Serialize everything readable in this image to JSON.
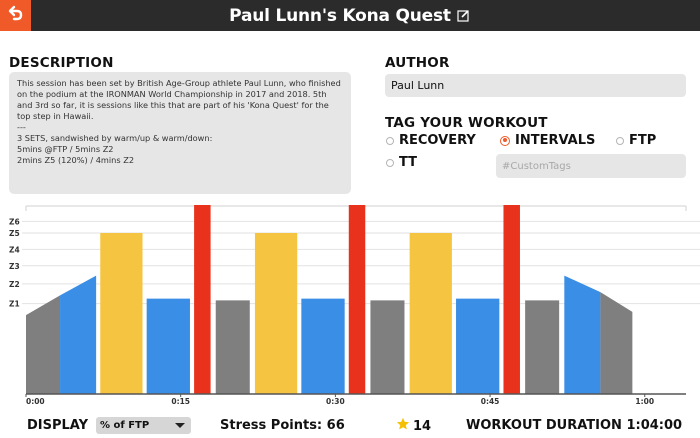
{
  "header": {
    "title": "Paul Lunn's Kona Quest",
    "icons": {
      "back": "back-arrow-icon",
      "edit": "edit-icon"
    },
    "colors": {
      "bar": "#2b2b2b",
      "back": "#f05a28"
    }
  },
  "description": {
    "label": "DESCRIPTION",
    "text": "This session has been set by British Age-Group athlete Paul Lunn, who finished on the podium at the IRONMAN World Championship in 2017 and 2018. 5th and 3rd so far, it is sessions like this that are part of his 'Kona Quest' for the top step in Hawaii.\n---\n3 SETS, sandwished by warm/up & warm/down:\n5mins @FTP / 5mins Z2\n2mins Z5 (120%) / 4mins Z2"
  },
  "author": {
    "label": "AUTHOR",
    "value": "Paul Lunn"
  },
  "tags": {
    "label": "TAG YOUR WORKOUT",
    "options": [
      {
        "label": "RECOVERY",
        "selected": false
      },
      {
        "label": "INTERVALS",
        "selected": true
      },
      {
        "label": "FTP",
        "selected": false
      },
      {
        "label": "TT",
        "selected": false
      }
    ],
    "custom_placeholder": "#CustomTags"
  },
  "chart_data": {
    "type": "bar",
    "title": "",
    "xlabel": "",
    "ylabel": "",
    "x_tick_labels": [
      "0:00",
      "0:15",
      "0:30",
      "0:45",
      "1:00"
    ],
    "x_tick_minutes": [
      0,
      15,
      30,
      45,
      60
    ],
    "zone_labels": [
      "Z1",
      "Z2",
      "Z3",
      "Z4",
      "Z5",
      "Z6"
    ],
    "zone_levels": [
      0.55,
      0.67,
      0.78,
      0.88,
      0.98,
      1.05
    ],
    "ylim": [
      0,
      1.15
    ],
    "total_minutes": 64,
    "segments": [
      {
        "start": 0,
        "end": 3.3,
        "from": 0.48,
        "to": 0.6,
        "zone": 1
      },
      {
        "start": 3.3,
        "end": 6.8,
        "from": 0.6,
        "to": 0.72,
        "zone": 2
      },
      {
        "start": 7.2,
        "end": 11.3,
        "from": 0.98,
        "to": 0.98,
        "zone": 4
      },
      {
        "start": 11.7,
        "end": 15.9,
        "from": 0.58,
        "to": 0.58,
        "zone": 2
      },
      {
        "start": 16.3,
        "end": 17.9,
        "from": 1.2,
        "to": 1.2,
        "zone": 5
      },
      {
        "start": 18.4,
        "end": 21.7,
        "from": 0.57,
        "to": 0.57,
        "zone": 1
      },
      {
        "start": 22.2,
        "end": 26.3,
        "from": 0.98,
        "to": 0.98,
        "zone": 4
      },
      {
        "start": 26.7,
        "end": 30.9,
        "from": 0.58,
        "to": 0.58,
        "zone": 2
      },
      {
        "start": 31.3,
        "end": 32.9,
        "from": 1.2,
        "to": 1.2,
        "zone": 5
      },
      {
        "start": 33.4,
        "end": 36.7,
        "from": 0.57,
        "to": 0.57,
        "zone": 1
      },
      {
        "start": 37.2,
        "end": 41.3,
        "from": 0.98,
        "to": 0.98,
        "zone": 4
      },
      {
        "start": 41.7,
        "end": 45.9,
        "from": 0.58,
        "to": 0.58,
        "zone": 2
      },
      {
        "start": 46.3,
        "end": 47.9,
        "from": 1.2,
        "to": 1.2,
        "zone": 5
      },
      {
        "start": 48.4,
        "end": 51.7,
        "from": 0.57,
        "to": 0.57,
        "zone": 1
      },
      {
        "start": 52.2,
        "end": 55.7,
        "from": 0.72,
        "to": 0.62,
        "zone": 2
      },
      {
        "start": 55.7,
        "end": 58.8,
        "from": 0.62,
        "to": 0.5,
        "zone": 1
      }
    ],
    "zone_colors": {
      "1": "#7f7f7f",
      "2": "#3a8ee6",
      "4": "#f5c542",
      "5": "#e8321b"
    }
  },
  "footer": {
    "display_label": "DISPLAY",
    "display_value": "% of FTP",
    "stress_points": "Stress Points: 66",
    "star_count": "14",
    "duration": "WORKOUT DURATION 1:04:00",
    "star_color": "#f5c000"
  }
}
